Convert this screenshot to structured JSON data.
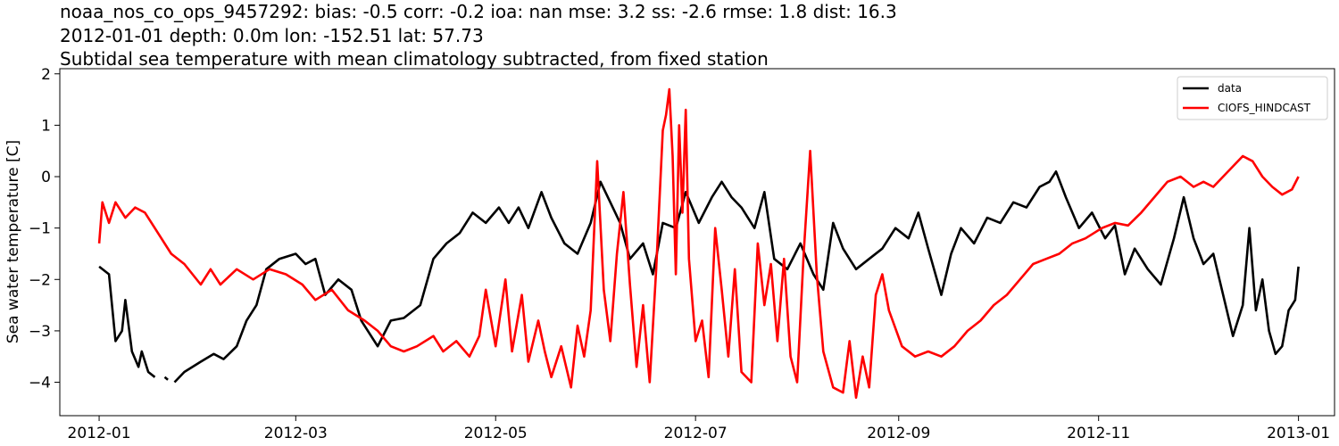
{
  "titles": {
    "line1": "noaa_nos_co_ops_9457292: bias: -0.5  corr: -0.2  ioa: nan  mse: 3.2  ss: -2.6  rmse: 1.8  dist: 16.3",
    "line2": "2012-01-01 depth: 0.0m lon: -152.51 lat: 57.73",
    "line3": "Subtidal sea temperature with mean climatology subtracted, from fixed station"
  },
  "chart_data": {
    "type": "line",
    "title": "noaa_nos_co_ops_9457292: bias: -0.5  corr: -0.2  ioa: nan  mse: 3.2  ss: -2.6  rmse: 1.8  dist: 16.3 / 2012-01-01 depth: 0.0m lon: -152.51 lat: 57.73 / Subtidal sea temperature with mean climatology subtracted, from fixed station",
    "xlabel": "",
    "ylabel": "Sea water temperature [C]",
    "xlim": [
      "2011-12-20",
      "2013-01-12"
    ],
    "ylim": [
      -4.65,
      2.1
    ],
    "xticks": [
      "2012-01",
      "2012-03",
      "2012-05",
      "2012-07",
      "2012-09",
      "2012-11",
      "2013-01"
    ],
    "yticks": [
      -4,
      -3,
      -2,
      -1,
      0,
      1,
      2
    ],
    "grid": false,
    "legend_position": "top-right",
    "series": [
      {
        "name": "data",
        "color": "#000000",
        "segments": [
          [
            [
              "2012-01-01",
              -1.75
            ],
            [
              "2012-01-04",
              -1.9
            ],
            [
              "2012-01-06",
              -3.2
            ],
            [
              "2012-01-08",
              -3.0
            ],
            [
              "2012-01-09",
              -2.4
            ],
            [
              "2012-01-11",
              -3.4
            ],
            [
              "2012-01-13",
              -3.7
            ],
            [
              "2012-01-14",
              -3.4
            ],
            [
              "2012-01-16",
              -3.8
            ],
            [
              "2012-01-18",
              -3.9
            ]
          ],
          [
            [
              "2012-01-21",
              -3.9
            ],
            [
              "2012-01-22",
              -3.95
            ]
          ],
          [
            [
              "2012-01-24",
              -4.0
            ],
            [
              "2012-01-27",
              -3.8
            ],
            [
              "2012-02-01",
              -3.6
            ],
            [
              "2012-02-05",
              -3.45
            ],
            [
              "2012-02-08",
              -3.55
            ],
            [
              "2012-02-12",
              -3.3
            ],
            [
              "2012-02-15",
              -2.8
            ],
            [
              "2012-02-18",
              -2.5
            ],
            [
              "2012-02-21",
              -1.8
            ],
            [
              "2012-02-25",
              -1.6
            ],
            [
              "2012-03-01",
              -1.5
            ],
            [
              "2012-03-04",
              -1.7
            ],
            [
              "2012-03-07",
              -1.6
            ],
            [
              "2012-03-10",
              -2.3
            ],
            [
              "2012-03-14",
              -2.0
            ],
            [
              "2012-03-18",
              -2.2
            ],
            [
              "2012-03-21",
              -2.8
            ],
            [
              "2012-03-26",
              -3.3
            ],
            [
              "2012-03-30",
              -2.8
            ],
            [
              "2012-04-03",
              -2.75
            ],
            [
              "2012-04-08",
              -2.5
            ],
            [
              "2012-04-12",
              -1.6
            ],
            [
              "2012-04-16",
              -1.3
            ],
            [
              "2012-04-20",
              -1.1
            ],
            [
              "2012-04-24",
              -0.7
            ],
            [
              "2012-04-28",
              -0.9
            ],
            [
              "2012-05-02",
              -0.6
            ],
            [
              "2012-05-05",
              -0.9
            ],
            [
              "2012-05-08",
              -0.6
            ],
            [
              "2012-05-11",
              -1.0
            ],
            [
              "2012-05-15",
              -0.3
            ],
            [
              "2012-05-18",
              -0.8
            ],
            [
              "2012-05-22",
              -1.3
            ],
            [
              "2012-05-26",
              -1.5
            ],
            [
              "2012-05-30",
              -0.9
            ],
            [
              "2012-06-02",
              -0.1
            ],
            [
              "2012-06-05",
              -0.5
            ],
            [
              "2012-06-08",
              -0.9
            ],
            [
              "2012-06-11",
              -1.6
            ],
            [
              "2012-06-15",
              -1.3
            ],
            [
              "2012-06-18",
              -1.9
            ],
            [
              "2012-06-21",
              -0.9
            ],
            [
              "2012-06-25",
              -1.0
            ],
            [
              "2012-06-28",
              -0.3
            ],
            [
              "2012-07-02",
              -0.9
            ],
            [
              "2012-07-06",
              -0.4
            ],
            [
              "2012-07-09",
              -0.1
            ],
            [
              "2012-07-12",
              -0.4
            ],
            [
              "2012-07-15",
              -0.6
            ],
            [
              "2012-07-19",
              -1.0
            ],
            [
              "2012-07-22",
              -0.3
            ],
            [
              "2012-07-25",
              -1.6
            ],
            [
              "2012-07-29",
              -1.8
            ],
            [
              "2012-08-02",
              -1.3
            ],
            [
              "2012-08-06",
              -1.9
            ],
            [
              "2012-08-09",
              -2.2
            ],
            [
              "2012-08-12",
              -0.9
            ],
            [
              "2012-08-15",
              -1.4
            ],
            [
              "2012-08-19",
              -1.8
            ],
            [
              "2012-08-23",
              -1.6
            ],
            [
              "2012-08-27",
              -1.4
            ],
            [
              "2012-08-31",
              -1.0
            ],
            [
              "2012-09-04",
              -1.2
            ],
            [
              "2012-09-07",
              -0.7
            ],
            [
              "2012-09-10",
              -1.4
            ],
            [
              "2012-09-14",
              -2.3
            ],
            [
              "2012-09-17",
              -1.5
            ],
            [
              "2012-09-20",
              -1.0
            ],
            [
              "2012-09-24",
              -1.3
            ],
            [
              "2012-09-28",
              -0.8
            ],
            [
              "2012-10-02",
              -0.9
            ],
            [
              "2012-10-06",
              -0.5
            ],
            [
              "2012-10-10",
              -0.6
            ],
            [
              "2012-10-14",
              -0.2
            ],
            [
              "2012-10-17",
              -0.1
            ],
            [
              "2012-10-19",
              0.1
            ],
            [
              "2012-10-22",
              -0.4
            ],
            [
              "2012-10-26",
              -1.0
            ],
            [
              "2012-10-30",
              -0.7
            ],
            [
              "2012-11-03",
              -1.2
            ],
            [
              "2012-11-06",
              -0.95
            ],
            [
              "2012-11-09",
              -1.9
            ],
            [
              "2012-11-12",
              -1.4
            ],
            [
              "2012-11-16",
              -1.8
            ],
            [
              "2012-11-20",
              -2.1
            ],
            [
              "2012-11-24",
              -1.2
            ],
            [
              "2012-11-27",
              -0.4
            ],
            [
              "2012-11-30",
              -1.2
            ],
            [
              "2012-12-03",
              -1.7
            ],
            [
              "2012-12-06",
              -1.5
            ],
            [
              "2012-12-09",
              -2.3
            ],
            [
              "2012-12-12",
              -3.1
            ],
            [
              "2012-12-15",
              -2.5
            ],
            [
              "2012-12-17",
              -1.0
            ],
            [
              "2012-12-19",
              -2.6
            ],
            [
              "2012-12-21",
              -2.0
            ],
            [
              "2012-12-23",
              -3.0
            ],
            [
              "2012-12-25",
              -3.45
            ],
            [
              "2012-12-27",
              -3.3
            ],
            [
              "2012-12-29",
              -2.6
            ],
            [
              "2012-12-31",
              -2.4
            ],
            [
              "2013-01-01",
              -1.75
            ]
          ]
        ]
      },
      {
        "name": "CIOFS_HINDCAST",
        "color": "#ff0000",
        "segments": [
          [
            [
              "2012-01-01",
              -1.3
            ],
            [
              "2012-01-02",
              -0.5
            ],
            [
              "2012-01-04",
              -0.9
            ],
            [
              "2012-01-06",
              -0.5
            ],
            [
              "2012-01-09",
              -0.8
            ],
            [
              "2012-01-12",
              -0.6
            ],
            [
              "2012-01-15",
              -0.7
            ],
            [
              "2012-01-19",
              -1.1
            ],
            [
              "2012-01-23",
              -1.5
            ],
            [
              "2012-01-27",
              -1.7
            ],
            [
              "2012-02-01",
              -2.1
            ],
            [
              "2012-02-04",
              -1.8
            ],
            [
              "2012-02-07",
              -2.1
            ],
            [
              "2012-02-12",
              -1.8
            ],
            [
              "2012-02-17",
              -2.0
            ],
            [
              "2012-02-22",
              -1.8
            ],
            [
              "2012-02-27",
              -1.9
            ],
            [
              "2012-03-03",
              -2.1
            ],
            [
              "2012-03-07",
              -2.4
            ],
            [
              "2012-03-12",
              -2.2
            ],
            [
              "2012-03-17",
              -2.6
            ],
            [
              "2012-03-22",
              -2.8
            ],
            [
              "2012-03-26",
              -3.0
            ],
            [
              "2012-03-30",
              -3.3
            ],
            [
              "2012-04-03",
              -3.4
            ],
            [
              "2012-04-07",
              -3.3
            ],
            [
              "2012-04-12",
              -3.1
            ],
            [
              "2012-04-15",
              -3.4
            ],
            [
              "2012-04-19",
              -3.2
            ],
            [
              "2012-04-23",
              -3.5
            ],
            [
              "2012-04-26",
              -3.1
            ],
            [
              "2012-04-28",
              -2.2
            ],
            [
              "2012-05-01",
              -3.3
            ],
            [
              "2012-05-04",
              -2.0
            ],
            [
              "2012-05-06",
              -3.4
            ],
            [
              "2012-05-09",
              -2.3
            ],
            [
              "2012-05-11",
              -3.6
            ],
            [
              "2012-05-14",
              -2.8
            ],
            [
              "2012-05-16",
              -3.4
            ],
            [
              "2012-05-18",
              -3.9
            ],
            [
              "2012-05-21",
              -3.3
            ],
            [
              "2012-05-24",
              -4.1
            ],
            [
              "2012-05-26",
              -2.9
            ],
            [
              "2012-05-28",
              -3.5
            ],
            [
              "2012-05-30",
              -2.6
            ],
            [
              "2012-06-01",
              0.3
            ],
            [
              "2012-06-03",
              -2.2
            ],
            [
              "2012-06-05",
              -3.2
            ],
            [
              "2012-06-07",
              -1.5
            ],
            [
              "2012-06-09",
              -0.3
            ],
            [
              "2012-06-11",
              -2.1
            ],
            [
              "2012-06-13",
              -3.7
            ],
            [
              "2012-06-15",
              -2.5
            ],
            [
              "2012-06-17",
              -4.0
            ],
            [
              "2012-06-19",
              -1.8
            ],
            [
              "2012-06-21",
              0.9
            ],
            [
              "2012-06-22",
              1.2
            ],
            [
              "2012-06-23",
              1.7
            ],
            [
              "2012-06-24",
              0.4
            ],
            [
              "2012-06-25",
              -1.9
            ],
            [
              "2012-06-26",
              1.0
            ],
            [
              "2012-06-27",
              -0.7
            ],
            [
              "2012-06-28",
              1.3
            ],
            [
              "2012-06-29",
              -1.6
            ],
            [
              "2012-07-01",
              -3.2
            ],
            [
              "2012-07-03",
              -2.8
            ],
            [
              "2012-07-05",
              -3.9
            ],
            [
              "2012-07-07",
              -1.0
            ],
            [
              "2012-07-09",
              -2.2
            ],
            [
              "2012-07-11",
              -3.5
            ],
            [
              "2012-07-13",
              -1.8
            ],
            [
              "2012-07-15",
              -3.8
            ],
            [
              "2012-07-18",
              -4.0
            ],
            [
              "2012-07-20",
              -1.3
            ],
            [
              "2012-07-22",
              -2.5
            ],
            [
              "2012-07-24",
              -1.7
            ],
            [
              "2012-07-26",
              -3.2
            ],
            [
              "2012-07-28",
              -1.6
            ],
            [
              "2012-07-30",
              -3.5
            ],
            [
              "2012-08-01",
              -4.0
            ],
            [
              "2012-08-03",
              -1.5
            ],
            [
              "2012-08-05",
              0.5
            ],
            [
              "2012-08-07",
              -1.9
            ],
            [
              "2012-08-09",
              -3.4
            ],
            [
              "2012-08-12",
              -4.1
            ],
            [
              "2012-08-15",
              -4.2
            ],
            [
              "2012-08-17",
              -3.2
            ],
            [
              "2012-08-19",
              -4.3
            ],
            [
              "2012-08-21",
              -3.5
            ],
            [
              "2012-08-23",
              -4.1
            ],
            [
              "2012-08-25",
              -2.3
            ],
            [
              "2012-08-27",
              -1.9
            ],
            [
              "2012-08-29",
              -2.6
            ],
            [
              "2012-09-02",
              -3.3
            ],
            [
              "2012-09-06",
              -3.5
            ],
            [
              "2012-09-10",
              -3.4
            ],
            [
              "2012-09-14",
              -3.5
            ],
            [
              "2012-09-18",
              -3.3
            ],
            [
              "2012-09-22",
              -3.0
            ],
            [
              "2012-09-26",
              -2.8
            ],
            [
              "2012-09-30",
              -2.5
            ],
            [
              "2012-10-04",
              -2.3
            ],
            [
              "2012-10-08",
              -2.0
            ],
            [
              "2012-10-12",
              -1.7
            ],
            [
              "2012-10-16",
              -1.6
            ],
            [
              "2012-10-20",
              -1.5
            ],
            [
              "2012-10-24",
              -1.3
            ],
            [
              "2012-10-28",
              -1.2
            ],
            [
              "2012-11-02",
              -1.0
            ],
            [
              "2012-11-06",
              -0.9
            ],
            [
              "2012-11-10",
              -0.95
            ],
            [
              "2012-11-14",
              -0.7
            ],
            [
              "2012-11-18",
              -0.4
            ],
            [
              "2012-11-22",
              -0.1
            ],
            [
              "2012-11-26",
              0.0
            ],
            [
              "2012-11-30",
              -0.2
            ],
            [
              "2012-12-03",
              -0.1
            ],
            [
              "2012-12-06",
              -0.2
            ],
            [
              "2012-12-09",
              0.0
            ],
            [
              "2012-12-12",
              0.2
            ],
            [
              "2012-12-15",
              0.4
            ],
            [
              "2012-12-18",
              0.3
            ],
            [
              "2012-12-21",
              0.0
            ],
            [
              "2012-12-24",
              -0.2
            ],
            [
              "2012-12-27",
              -0.35
            ],
            [
              "2012-12-30",
              -0.25
            ],
            [
              "2013-01-01",
              0.0
            ]
          ]
        ]
      }
    ]
  }
}
